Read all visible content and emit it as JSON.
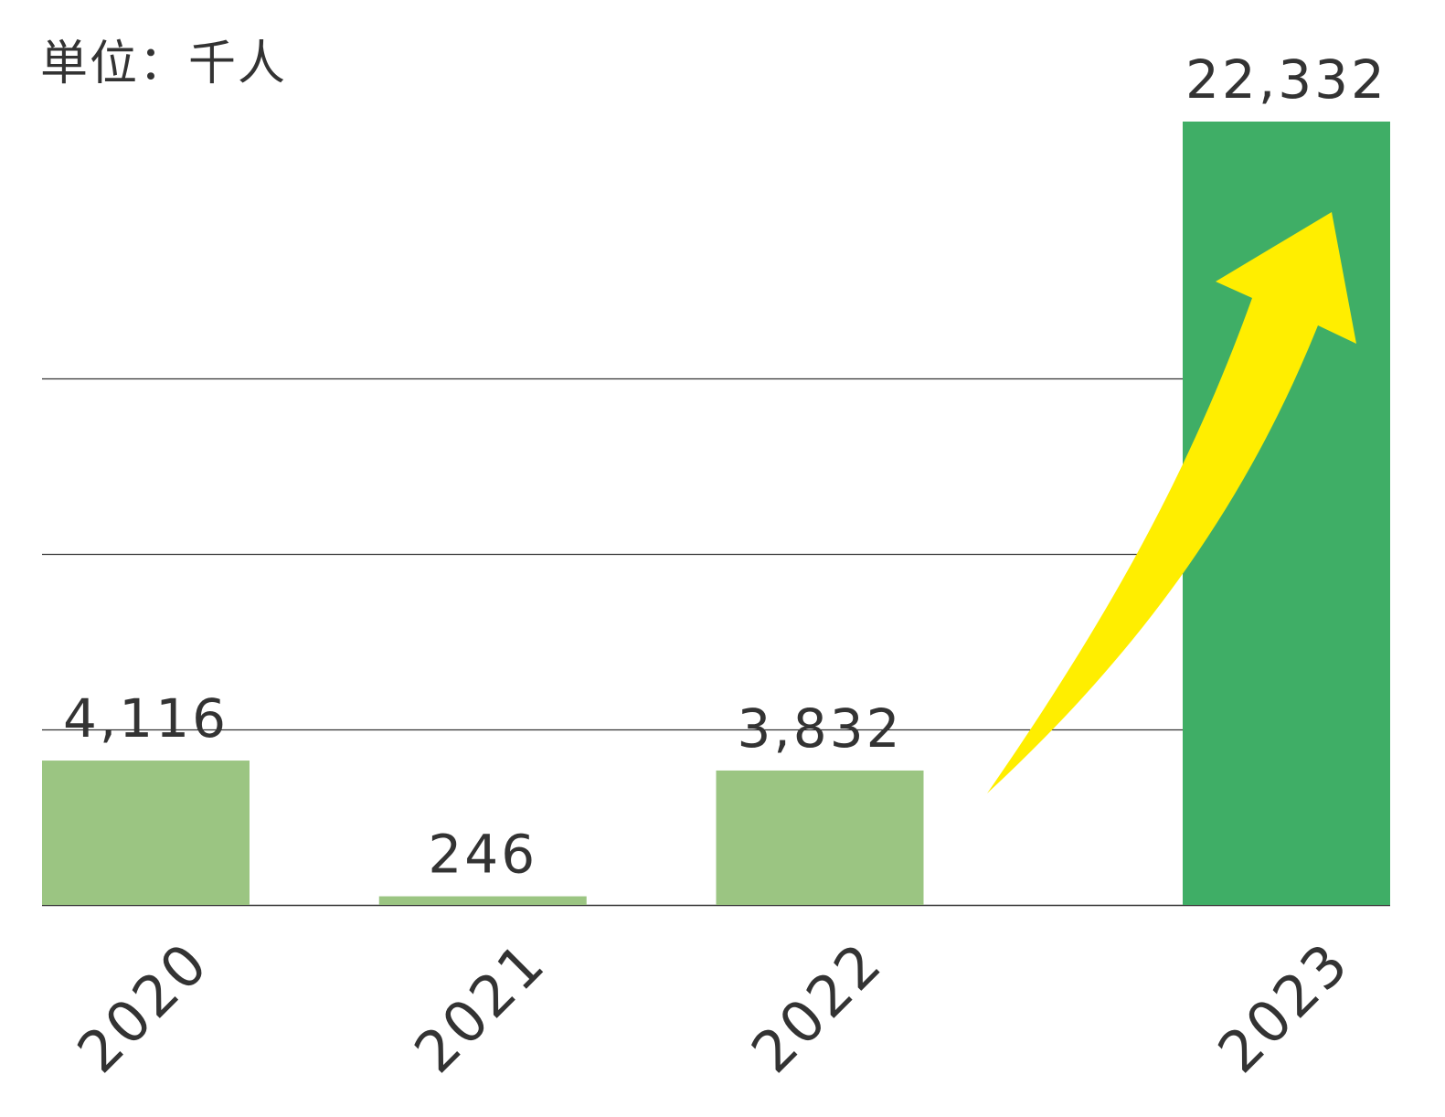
{
  "unit_label": "単位：千人",
  "colors": {
    "bar_default": "#9BC582",
    "bar_highlight": "#3FAE66",
    "arrow": "#FFEE00",
    "gridline": "#333333",
    "text": "#333333"
  },
  "chart_data": {
    "type": "bar",
    "categories": [
      "2020",
      "2021",
      "2022",
      "2023"
    ],
    "values": [
      4116,
      246,
      3832,
      22332
    ],
    "value_labels": [
      "4,116",
      "246",
      "3,832",
      "22,332"
    ],
    "highlight_category": "2023",
    "ylim": [
      0,
      22332
    ],
    "gridlines": [
      5000,
      10000,
      15000
    ],
    "grid": true,
    "x_tick_rotation": -45,
    "annotation": "arrow from 2022 to 2023"
  }
}
